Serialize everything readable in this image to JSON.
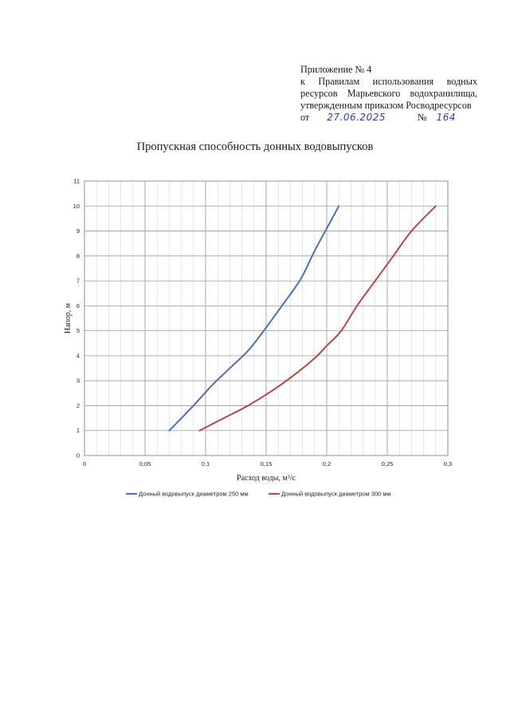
{
  "header": {
    "line1": "Приложение № 4",
    "line2": "к Правилам использования водных",
    "line3": "ресурсов Марьевского водохранилища,",
    "line4": "утвержденным приказом Росводресурсов",
    "from_label": "от",
    "date": "27.06.2025",
    "number_label": "№",
    "number": "164"
  },
  "chart_data": {
    "type": "line",
    "title": "Пропускная способность донных водовыпусков",
    "xlabel": "Расход воды, м³/с",
    "ylabel": "Напор, м",
    "xlim": [
      0,
      0.3
    ],
    "ylim": [
      0,
      11
    ],
    "xticks": [
      {
        "v": 0,
        "label": "0"
      },
      {
        "v": 0.05,
        "label": "0,05"
      },
      {
        "v": 0.1,
        "label": "0,1"
      },
      {
        "v": 0.15,
        "label": "0,15"
      },
      {
        "v": 0.2,
        "label": "0,2"
      },
      {
        "v": 0.25,
        "label": "0,25"
      },
      {
        "v": 0.3,
        "label": "0,3"
      }
    ],
    "yticks": [
      {
        "v": 0,
        "label": "0"
      },
      {
        "v": 1,
        "label": "1"
      },
      {
        "v": 2,
        "label": "2"
      },
      {
        "v": 3,
        "label": "3"
      },
      {
        "v": 4,
        "label": "4"
      },
      {
        "v": 5,
        "label": "5"
      },
      {
        "v": 6,
        "label": "6"
      },
      {
        "v": 7,
        "label": "7"
      },
      {
        "v": 8,
        "label": "8"
      },
      {
        "v": 9,
        "label": "9"
      },
      {
        "v": 10,
        "label": "10"
      },
      {
        "v": 11,
        "label": "11"
      }
    ],
    "grid": true,
    "legend_position": "bottom",
    "series": [
      {
        "name": "Донный водовыпуск диаметром 250 мм",
        "color": "#4a72b0",
        "x": [
          0.07,
          0.09,
          0.105,
          0.12,
          0.135,
          0.148,
          0.16,
          0.172,
          0.18,
          0.19,
          0.2,
          0.21
        ],
        "y": [
          1,
          2,
          2.8,
          3.5,
          4.2,
          5,
          5.8,
          6.6,
          7.2,
          8.2,
          9.1,
          10
        ]
      },
      {
        "name": "Донный водовыпуск диаметром 300 мм",
        "color": "#b84545",
        "x": [
          0.095,
          0.115,
          0.135,
          0.155,
          0.175,
          0.19,
          0.2,
          0.212,
          0.225,
          0.24,
          0.255,
          0.27,
          0.29
        ],
        "y": [
          1,
          1.5,
          2,
          2.6,
          3.3,
          3.9,
          4.4,
          5,
          6,
          7,
          8,
          9,
          10
        ]
      }
    ]
  }
}
